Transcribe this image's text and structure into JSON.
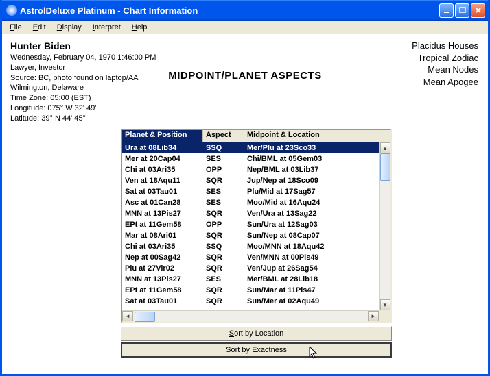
{
  "window": {
    "title": "AstrolDeluxe Platinum - Chart Information"
  },
  "menu": {
    "file": "File",
    "edit": "Edit",
    "display": "Display",
    "interpret": "Interpret",
    "help": "Help"
  },
  "subject": {
    "name": "Hunter Biden",
    "datetime": "Wednesday, February 04, 1970  1:46:00 PM",
    "role": "Lawyer, Investor",
    "source": "Source: BC, photo found on laptop/AA",
    "place": "Wilmington, Delaware",
    "tz": "Time Zone: 05:00 (EST)",
    "lon": "Longitude: 075° W 32' 49''",
    "lat": "Latitude: 39° N 44' 45''"
  },
  "settings": {
    "houses": "Placidus Houses",
    "zodiac": "Tropical Zodiac",
    "nodes": "Mean Nodes",
    "apogee": "Mean Apogee"
  },
  "heading": "MIDPOINT/PLANET ASPECTS",
  "table": {
    "headers": {
      "c1": "Planet & Position",
      "c2": "Aspect",
      "c3": "Midpoint & Location"
    },
    "rows": [
      {
        "c1": "Ura at 08Lib34",
        "c2": "SSQ",
        "c3": "Mer/Plu at 23Sco33",
        "sel": true
      },
      {
        "c1": "Mer at 20Cap04",
        "c2": "SES",
        "c3": "Chi/BML at 05Gem03"
      },
      {
        "c1": "Chi at 03Ari35",
        "c2": "OPP",
        "c3": "Nep/BML at 03Lib37"
      },
      {
        "c1": "Ven at 18Aqu11",
        "c2": "SQR",
        "c3": "Jup/Nep at 18Sco09"
      },
      {
        "c1": "Sat at 03Tau01",
        "c2": "SES",
        "c3": "Plu/Mid at 17Sag57"
      },
      {
        "c1": "Asc at 01Can28",
        "c2": "SES",
        "c3": "Moo/Mid at 16Aqu24"
      },
      {
        "c1": "MNN at 13Pis27",
        "c2": "SQR",
        "c3": "Ven/Ura at 13Sag22"
      },
      {
        "c1": "EPt at 11Gem58",
        "c2": "OPP",
        "c3": "Sun/Ura at 12Sag03"
      },
      {
        "c1": "Mar at 08Ari01",
        "c2": "SQR",
        "c3": "Sun/Nep at 08Cap07"
      },
      {
        "c1": "Chi at 03Ari35",
        "c2": "SSQ",
        "c3": "Moo/MNN at 18Aqu42"
      },
      {
        "c1": "Nep at 00Sag42",
        "c2": "SQR",
        "c3": "Ven/MNN at 00Pis49"
      },
      {
        "c1": "Plu at 27Vir02",
        "c2": "SQR",
        "c3": "Ven/Jup at 26Sag54"
      },
      {
        "c1": "MNN at 13Pis27",
        "c2": "SES",
        "c3": "Mer/BML at 28Lib18"
      },
      {
        "c1": "EPt at 11Gem58",
        "c2": "SQR",
        "c3": "Sun/Mar at 11Pis47"
      },
      {
        "c1": "Sat at 03Tau01",
        "c2": "SQR",
        "c3": "Sun/Mer at 02Aqu49"
      }
    ]
  },
  "buttons": {
    "sortLocation": "Sort by Location",
    "sortExactness": "Sort by Exactness"
  }
}
